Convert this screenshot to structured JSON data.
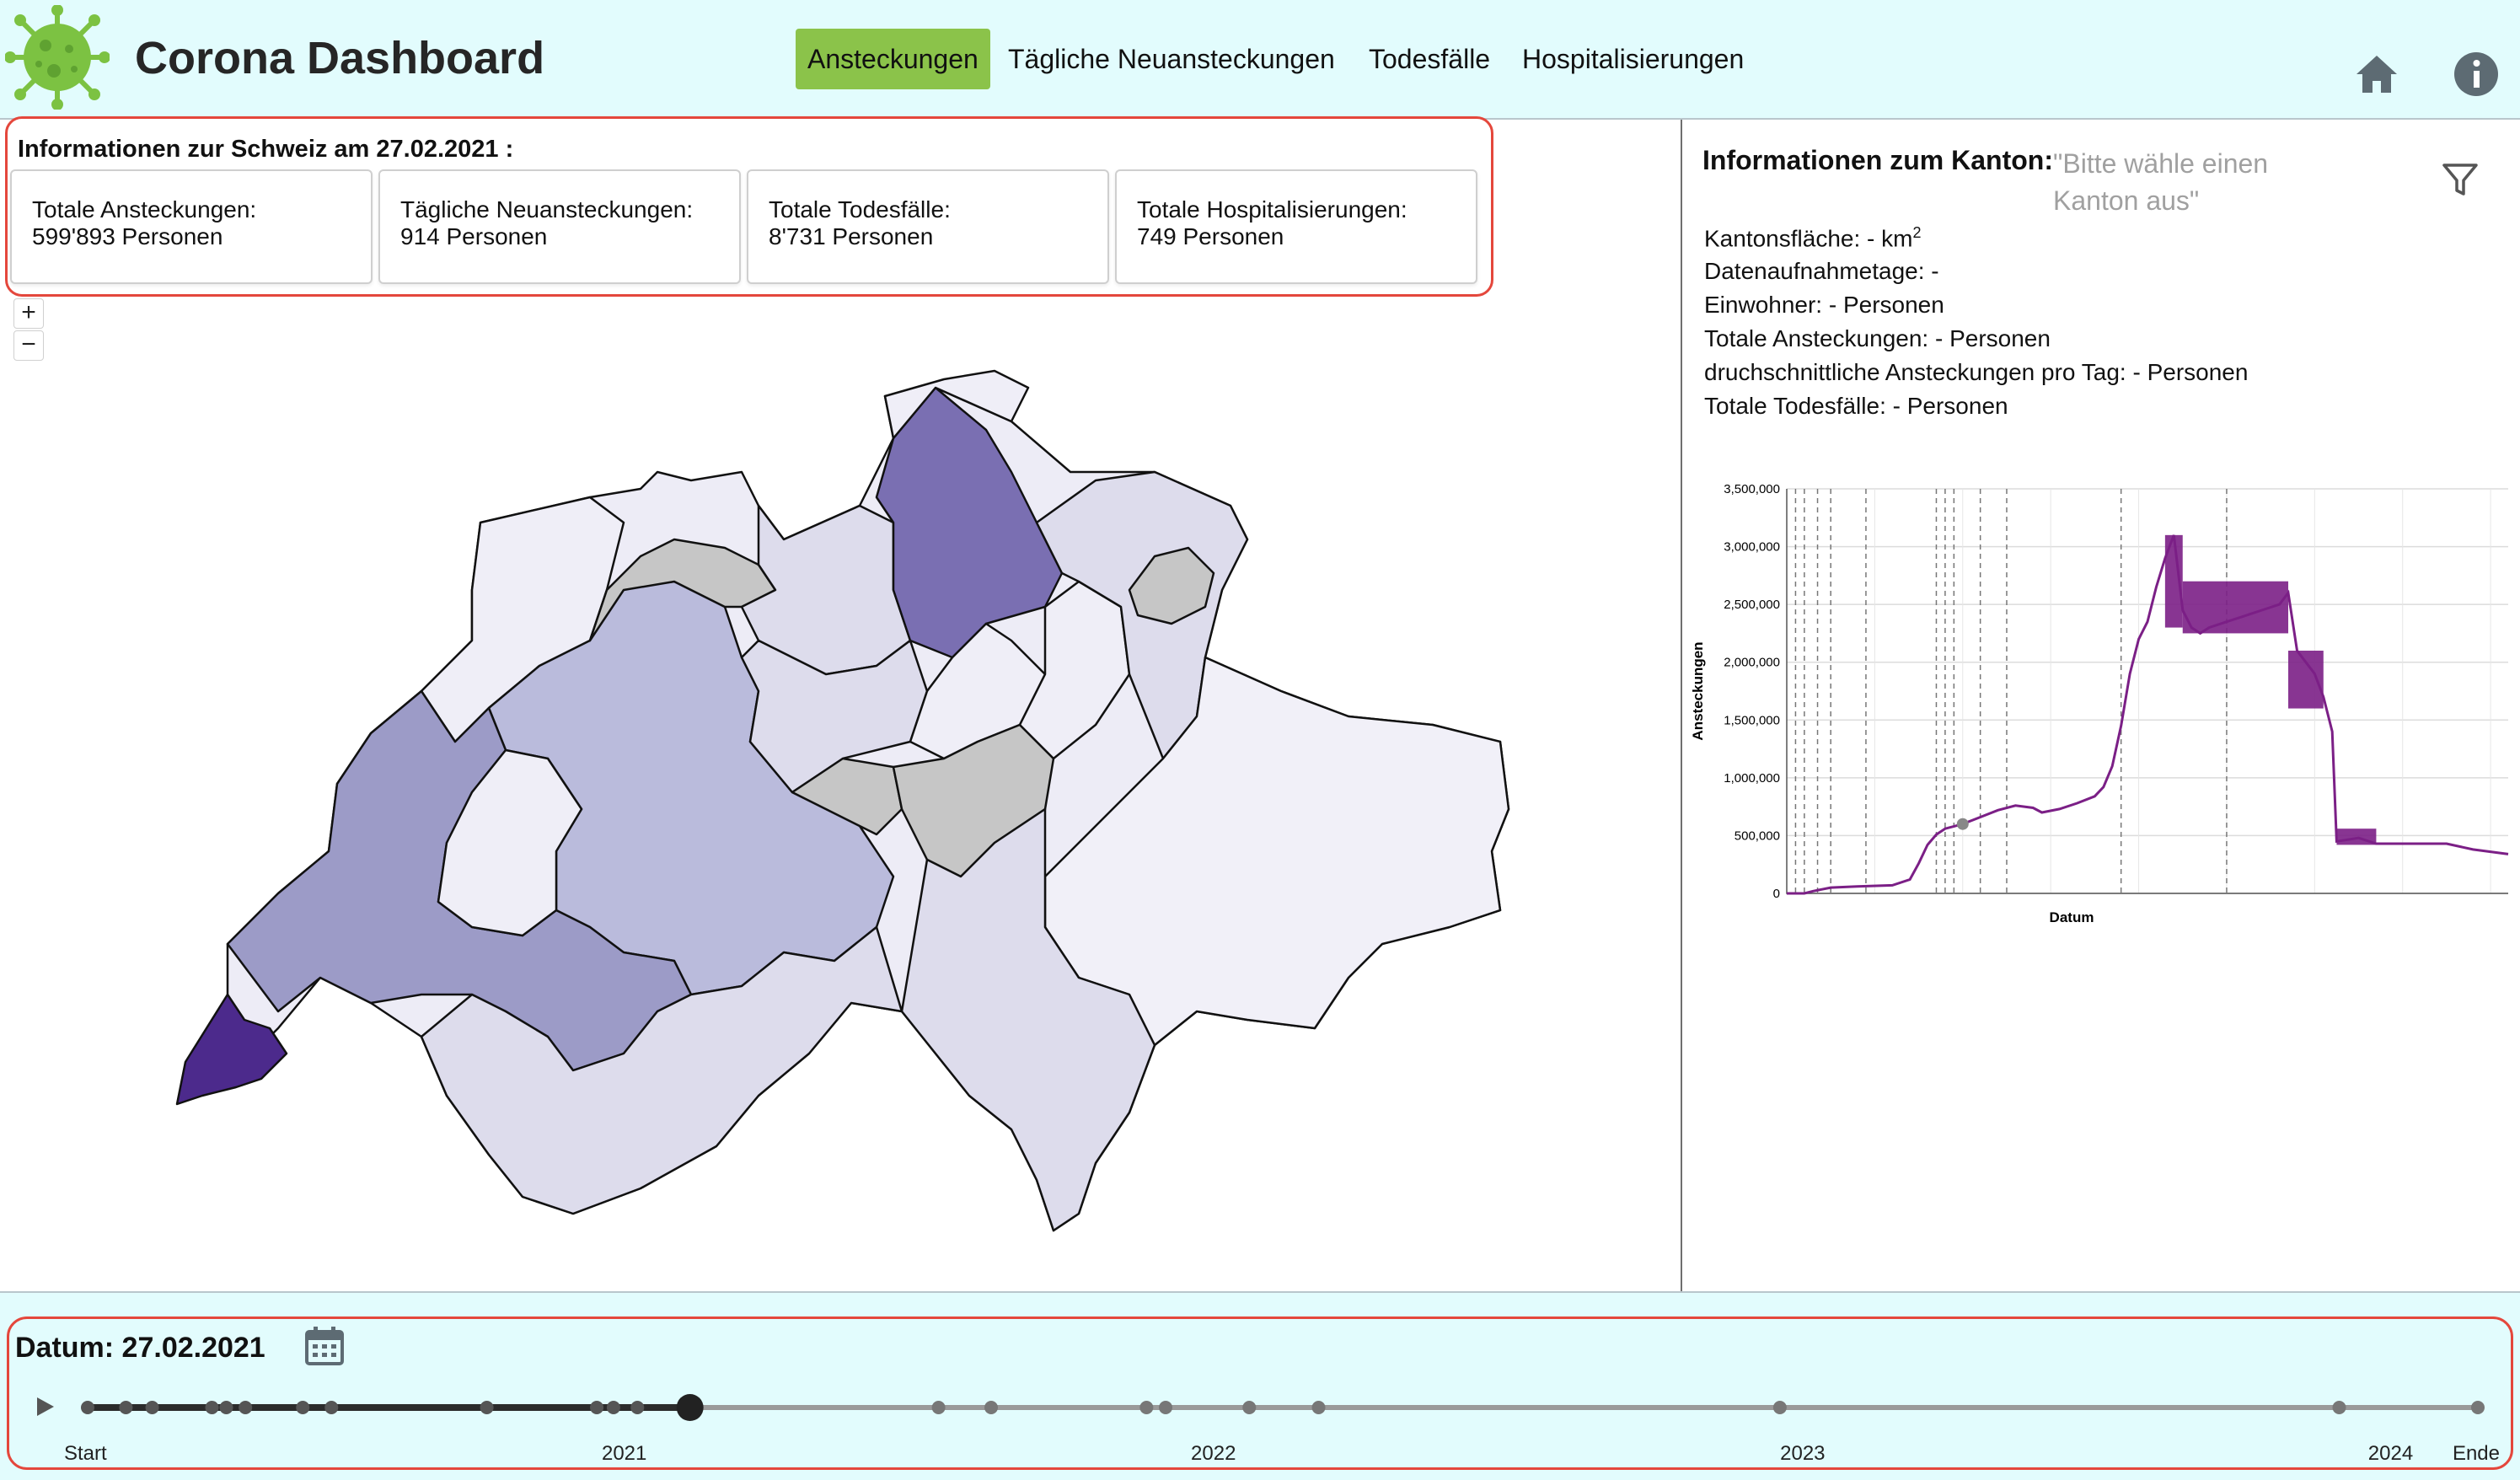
{
  "header": {
    "title": "Corona Dashboard",
    "tabs": [
      {
        "label": "Ansteckungen",
        "active": true
      },
      {
        "label": "Tägliche Neuansteckungen",
        "active": false
      },
      {
        "label": "Todesfälle",
        "active": false
      },
      {
        "label": "Hospitalisierungen",
        "active": false
      }
    ],
    "icons": [
      "virus-logo",
      "home-icon",
      "info-icon"
    ],
    "accent_color": "#8bc34a",
    "background_color": "#e2fcfd"
  },
  "switzerland": {
    "title": "Informationen zur Schweiz am 27.02.2021 :",
    "cards": [
      {
        "label": "Totale Ansteckungen:",
        "value": "599'893 Personen"
      },
      {
        "label": "Tägliche Neuansteckungen:",
        "value": "914 Personen"
      },
      {
        "label": "Totale Todesfälle:",
        "value": "8'731 Personen"
      },
      {
        "label": "Totale Hospitalisierungen:",
        "value": "749 Personen"
      }
    ]
  },
  "map_controls": {
    "zoom_in": "+",
    "zoom_out": "−"
  },
  "kanton": {
    "title": "Informationen zum Kanton:",
    "placeholder": "\"Bitte wähle einen Kanton aus\"",
    "area_label": "Kantonsfläche: - km",
    "area_sup": "2",
    "days": "Datenaufnahmetage: -",
    "population": "Einwohner: - Personen",
    "total_infections": "Totale Ansteckungen: - Personen",
    "avg_per_day": "druchschnittliche Ansteckungen pro Tag: - Personen",
    "total_deaths": "Totale Todesfälle: - Personen",
    "filter_icon": "filter-icon"
  },
  "chart_data": {
    "type": "line",
    "ylabel": "Ansteckungen",
    "xlabel": "Datum",
    "yticks": [
      "0",
      "500,000",
      "1,000,000",
      "1,500,000",
      "2,000,000",
      "2,500,000",
      "3,000,000",
      "3,500,000"
    ],
    "ylim": [
      0,
      3500000
    ],
    "line_color": "#7b1f86",
    "grid": true,
    "points": [
      [
        0,
        0
      ],
      [
        2,
        0
      ],
      [
        3,
        20000
      ],
      [
        5,
        50000
      ],
      [
        8,
        60000
      ],
      [
        12,
        70000
      ],
      [
        14,
        120000
      ],
      [
        15,
        260000
      ],
      [
        16,
        420000
      ],
      [
        17,
        510000
      ],
      [
        18,
        560000
      ],
      [
        20,
        600000
      ],
      [
        22,
        660000
      ],
      [
        24,
        720000
      ],
      [
        26,
        760000
      ],
      [
        28,
        740000
      ],
      [
        29,
        700000
      ],
      [
        31,
        730000
      ],
      [
        33,
        780000
      ],
      [
        35,
        840000
      ],
      [
        36,
        920000
      ],
      [
        37,
        1100000
      ],
      [
        38,
        1450000
      ],
      [
        39,
        1900000
      ],
      [
        40,
        2200000
      ],
      [
        41,
        2350000
      ],
      [
        42,
        2650000
      ],
      [
        43,
        2900000
      ],
      [
        44,
        3100000
      ],
      [
        45,
        2450000
      ],
      [
        46,
        2300000
      ],
      [
        47,
        2250000
      ],
      [
        48,
        2300000
      ],
      [
        50,
        2350000
      ],
      [
        52,
        2400000
      ],
      [
        54,
        2450000
      ],
      [
        56,
        2500000
      ],
      [
        57,
        2600000
      ],
      [
        58,
        2100000
      ],
      [
        59,
        2000000
      ],
      [
        60,
        1900000
      ],
      [
        61,
        1700000
      ],
      [
        62,
        1400000
      ],
      [
        62.5,
        450000
      ],
      [
        65,
        480000
      ],
      [
        67,
        430000
      ],
      [
        70,
        430000
      ],
      [
        75,
        430000
      ],
      [
        78,
        380000
      ],
      [
        82,
        340000
      ]
    ],
    "band_segments": [
      [
        43,
        45,
        2300000,
        3100000
      ],
      [
        45,
        57,
        2250000,
        2700000
      ],
      [
        57,
        61,
        1600000,
        2100000
      ],
      [
        62.5,
        67,
        420000,
        560000
      ]
    ],
    "x_max": 82,
    "event_lines": [
      1,
      2,
      3.5,
      5,
      9,
      17,
      18,
      19,
      22,
      25,
      38,
      50
    ],
    "marker_x": 20,
    "marker_y": 600000
  },
  "timeline": {
    "date_label": "Datum: 27.02.2021",
    "calendar_icon": "calendar-icon",
    "play_icon": "play-icon",
    "labels": [
      "Start",
      "2021",
      "2022",
      "2023",
      "2024",
      "Ende"
    ],
    "progress": 0.252,
    "markers": [
      0.0,
      0.016,
      0.027,
      0.052,
      0.058,
      0.066,
      0.09,
      0.102,
      0.167,
      0.213,
      0.22,
      0.23,
      0.252,
      0.356,
      0.378,
      0.443,
      0.451,
      0.486,
      0.515,
      0.708,
      0.942,
      1.0
    ]
  }
}
